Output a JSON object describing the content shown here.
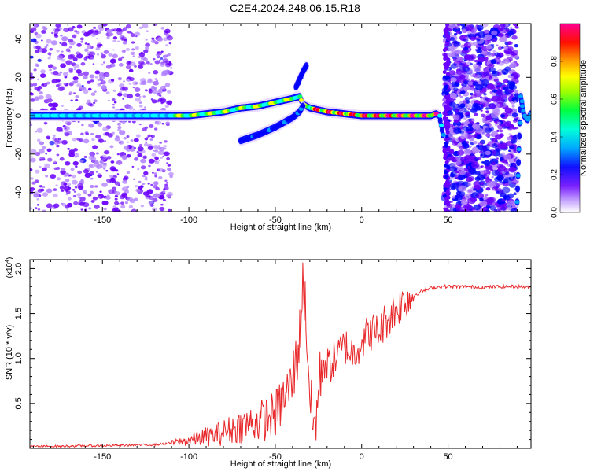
{
  "title": "C2E4.2024.248.06.15.R18",
  "chart_data": [
    {
      "type": "heatmap",
      "xlabel": "Height of straight line (km)",
      "ylabel": "Frequency (Hz)",
      "xlim": [
        -192,
        98
      ],
      "ylim": [
        -50,
        48
      ],
      "xticks": [
        -150,
        -100,
        -50,
        0,
        50
      ],
      "yticks": [
        -40,
        -20,
        0,
        20,
        40
      ],
      "grid": false,
      "colorbar": {
        "label": "Normalized spectral amplitude",
        "range": [
          0.0,
          1.0
        ],
        "ticks": [
          "0.0",
          "0.2",
          "0.4",
          "0.6",
          "0.8"
        ],
        "colormap": [
          "#ffffff",
          "#b080ff",
          "#6a00ff",
          "#0000ff",
          "#00a0ff",
          "#00ffff",
          "#00ff60",
          "#60ff00",
          "#ffff00",
          "#ffa000",
          "#ff0000",
          "#ff00a0"
        ]
      },
      "main_ridge": {
        "x": [
          -192,
          -160,
          -130,
          -110,
          -100,
          -90,
          -80,
          -70,
          -60,
          -50,
          -45,
          -40,
          -36,
          -34,
          -30,
          -25,
          -20,
          -10,
          0,
          10,
          20,
          30,
          40,
          43,
          45,
          47
        ],
        "y": [
          0,
          0,
          0,
          0,
          0,
          1,
          2,
          4,
          5,
          7,
          8,
          9,
          10,
          6,
          4,
          3,
          2,
          1,
          0,
          0,
          0,
          0,
          0,
          1,
          0,
          -10
        ]
      },
      "branch_upper": {
        "x": [
          -38,
          -36,
          -34,
          -32
        ],
        "y": [
          15,
          19,
          23,
          26
        ]
      },
      "branch_lower": {
        "x": [
          -70,
          -60,
          -50,
          -44,
          -40,
          -36,
          -34
        ],
        "y": [
          -13,
          -10,
          -6,
          -3,
          -1,
          2,
          5
        ]
      },
      "noise_regions": [
        [
          -192,
          -110
        ],
        [
          48,
          90
        ]
      ],
      "tail_oscillation": {
        "x": [
          90,
          92,
          94,
          96,
          98
        ],
        "y": [
          -45,
          10,
          0,
          -2,
          1
        ]
      }
    },
    {
      "type": "line",
      "xlabel": "Height of straight line (km)",
      "ylabel": "SNR (10 * v/v)",
      "ylabel_exponent": "(x10",
      "ylabel_exponent_power": "4",
      "exponent_close": ")",
      "xlim": [
        -192,
        98
      ],
      "ylim": [
        0,
        2.1
      ],
      "xticks": [
        -150,
        -100,
        -50,
        0,
        50
      ],
      "yticks": [
        0.5,
        1.0,
        1.5,
        2.0
      ],
      "ytick_labels": [
        "0.5",
        "1.0",
        "1.5",
        "2.0"
      ],
      "grid": false,
      "color": "#e8282a",
      "series": [
        {
          "x": [
            -192,
            -150,
            -120,
            -110,
            -100,
            -90,
            -80,
            -70,
            -60,
            -50,
            -45,
            -40,
            -36,
            -34,
            -32,
            -30,
            -28,
            -26,
            -24,
            -22,
            -20,
            -15,
            -10,
            -5,
            0,
            5,
            10,
            15,
            20,
            25,
            30,
            35,
            40,
            45,
            50,
            60,
            70,
            80,
            90,
            98
          ],
          "y": [
            0.02,
            0.03,
            0.04,
            0.06,
            0.09,
            0.13,
            0.18,
            0.25,
            0.3,
            0.38,
            0.55,
            0.75,
            1.2,
            1.9,
            1.4,
            0.6,
            0.2,
            0.4,
            0.8,
            1.0,
            0.9,
            1.0,
            1.15,
            1.05,
            1.2,
            1.3,
            1.3,
            1.45,
            1.55,
            1.65,
            1.7,
            1.75,
            1.78,
            1.8,
            1.8,
            1.8,
            1.79,
            1.8,
            1.8,
            1.79
          ]
        }
      ]
    }
  ]
}
